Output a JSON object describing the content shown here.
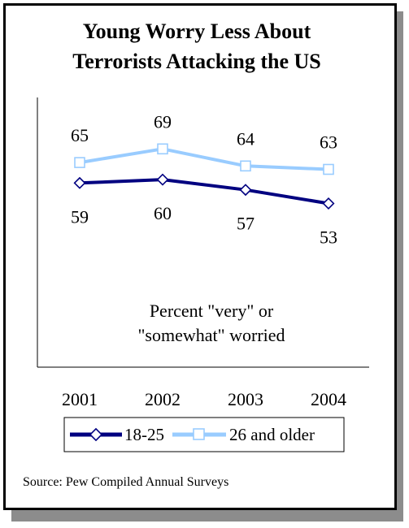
{
  "title": [
    "Young Worry Less About",
    "Terrorists Attacking the US"
  ],
  "annotation": [
    "Percent \"very\" or",
    "\"somewhat\" worried"
  ],
  "source": "Source: Pew Compiled Annual Surveys",
  "colors": {
    "series_18_25": "#000080",
    "series_26_older": "#99ccff",
    "frame": "#000000",
    "shadow": "#8c8c8c"
  },
  "chart_data": {
    "type": "line",
    "title": "Young Worry Less About Terrorists Attacking the US",
    "categories": [
      "2001",
      "2002",
      "2003",
      "2004"
    ],
    "series": [
      {
        "name": "18-25",
        "values": [
          59,
          60,
          57,
          53
        ],
        "marker": "diamond"
      },
      {
        "name": "26 and older",
        "values": [
          65,
          69,
          64,
          63
        ],
        "marker": "square"
      }
    ],
    "xlabel": "",
    "ylabel": "",
    "ylim": [
      0,
      100
    ],
    "grid": false,
    "legend": "bottom"
  }
}
